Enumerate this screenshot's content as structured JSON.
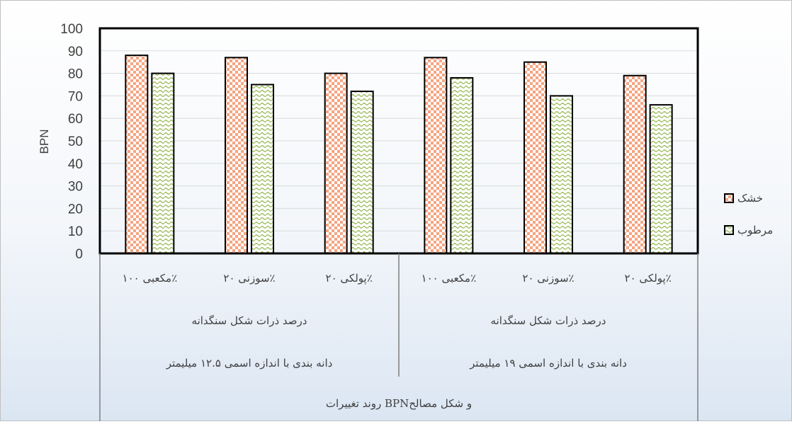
{
  "chart_data": {
    "type": "bar",
    "title": "",
    "ylabel": "BPN",
    "ylim": [
      0,
      100
    ],
    "yticks": [
      0,
      10,
      20,
      30,
      40,
      50,
      60,
      70,
      80,
      90,
      100
    ],
    "grid": true,
    "legend_position": "right",
    "categories": [
      "مکعبی ۱۰۰٪",
      "سوزنی ۲۰٪",
      "پولکی ۲۰٪",
      "مکعبی ۱۰۰٪",
      "سوزنی ۲۰٪",
      "پولکی ۲۰٪"
    ],
    "category_groups": [
      {
        "level1": "درصد ذرات شکل سنگدانه",
        "level2": "دانه بندی با اندازه اسمی ۱۲.۵ میلیمتر",
        "count": 3
      },
      {
        "level1": "درصد ذرات شکل سنگدانه",
        "level2": "دانه بندی با اندازه اسمی ۱۹ میلیمتر",
        "count": 3
      }
    ],
    "outer_category_label": "روند تغییرات  BPNو شکل مصالح",
    "series": [
      {
        "name": "خشک",
        "values": [
          88,
          87,
          80,
          87,
          85,
          79
        ]
      },
      {
        "name": "مرطوب",
        "values": [
          80,
          75,
          72,
          78,
          70,
          66
        ]
      }
    ],
    "colors": {
      "dry_fill": "#f4a582",
      "dry_alt": "#ffffff",
      "wet_fill": "#9bbb59",
      "wet_alt": "#ffffff",
      "axis": "#000000",
      "grid": "#d9d9d9",
      "text": "#404040"
    }
  }
}
